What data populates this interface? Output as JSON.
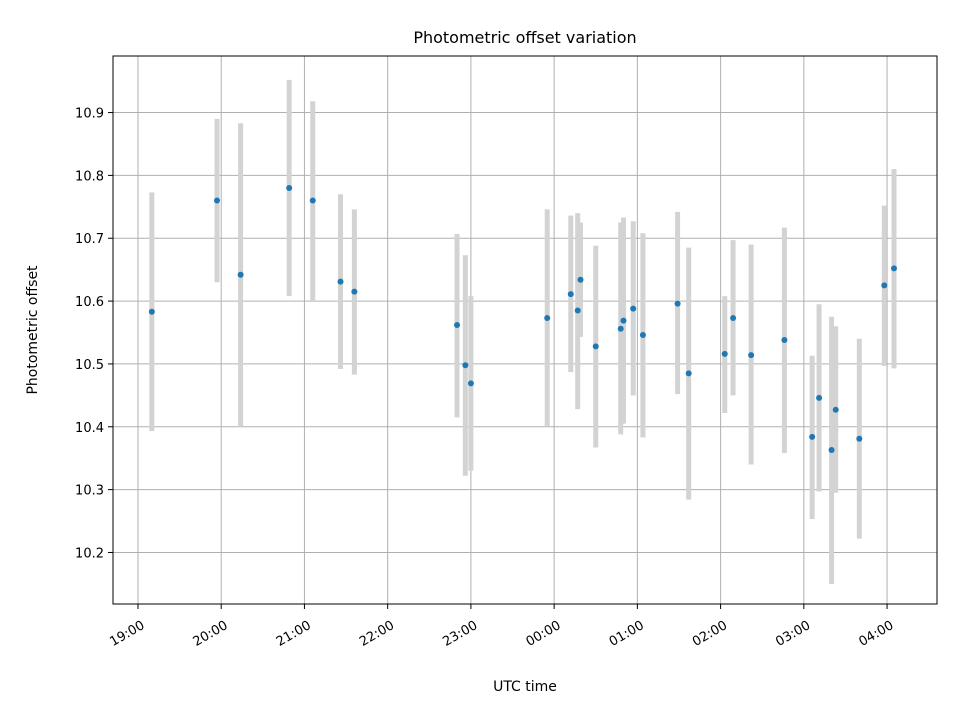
{
  "chart_data": {
    "type": "scatter",
    "title": "Photometric offset variation",
    "xlabel": "UTC time",
    "ylabel": "Photometric offset",
    "grid": true,
    "x_axis": {
      "start_hour": 18.7,
      "end_hour": 28.6
    },
    "y_axis": {
      "min": 10.118,
      "max": 10.99
    },
    "x_ticks": [
      {
        "hour": 19,
        "label": "19:00"
      },
      {
        "hour": 20,
        "label": "20:00"
      },
      {
        "hour": 21,
        "label": "21:00"
      },
      {
        "hour": 22,
        "label": "22:00"
      },
      {
        "hour": 23,
        "label": "23:00"
      },
      {
        "hour": 24,
        "label": "00:00"
      },
      {
        "hour": 25,
        "label": "01:00"
      },
      {
        "hour": 26,
        "label": "02:00"
      },
      {
        "hour": 27,
        "label": "03:00"
      },
      {
        "hour": 28,
        "label": "04:00"
      }
    ],
    "y_ticks": [
      {
        "value": 10.2,
        "label": "10.2"
      },
      {
        "value": 10.3,
        "label": "10.3"
      },
      {
        "value": 10.4,
        "label": "10.4"
      },
      {
        "value": 10.5,
        "label": "10.5"
      },
      {
        "value": 10.6,
        "label": "10.6"
      },
      {
        "value": 10.7,
        "label": "10.7"
      },
      {
        "value": 10.8,
        "label": "10.8"
      },
      {
        "value": 10.9,
        "label": "10.9"
      }
    ],
    "points": [
      {
        "time": "19:10",
        "y": 10.583,
        "ylow": 10.393,
        "yhigh": 10.773
      },
      {
        "time": "19:57",
        "y": 10.76,
        "ylow": 10.63,
        "yhigh": 10.89
      },
      {
        "time": "20:14",
        "y": 10.642,
        "ylow": 10.4,
        "yhigh": 10.883
      },
      {
        "time": "20:49",
        "y": 10.78,
        "ylow": 10.608,
        "yhigh": 10.952
      },
      {
        "time": "21:06",
        "y": 10.76,
        "ylow": 10.6,
        "yhigh": 10.918
      },
      {
        "time": "21:26",
        "y": 10.631,
        "ylow": 10.492,
        "yhigh": 10.77
      },
      {
        "time": "21:36",
        "y": 10.615,
        "ylow": 10.483,
        "yhigh": 10.746
      },
      {
        "time": "22:50",
        "y": 10.562,
        "ylow": 10.415,
        "yhigh": 10.707
      },
      {
        "time": "22:56",
        "y": 10.498,
        "ylow": 10.322,
        "yhigh": 10.673
      },
      {
        "time": "23:00",
        "y": 10.469,
        "ylow": 10.33,
        "yhigh": 10.608
      },
      {
        "time": "23:55",
        "y": 10.573,
        "ylow": 10.4,
        "yhigh": 10.746
      },
      {
        "time": "00:12",
        "y": 10.611,
        "ylow": 10.487,
        "yhigh": 10.736
      },
      {
        "time": "00:17",
        "y": 10.585,
        "ylow": 10.428,
        "yhigh": 10.74
      },
      {
        "time": "00:19",
        "y": 10.634,
        "ylow": 10.543,
        "yhigh": 10.725
      },
      {
        "time": "00:30",
        "y": 10.528,
        "ylow": 10.367,
        "yhigh": 10.688
      },
      {
        "time": "00:48",
        "y": 10.556,
        "ylow": 10.388,
        "yhigh": 10.725
      },
      {
        "time": "00:50",
        "y": 10.569,
        "ylow": 10.405,
        "yhigh": 10.733
      },
      {
        "time": "00:57",
        "y": 10.588,
        "ylow": 10.45,
        "yhigh": 10.727
      },
      {
        "time": "01:04",
        "y": 10.546,
        "ylow": 10.383,
        "yhigh": 10.708
      },
      {
        "time": "01:29",
        "y": 10.596,
        "ylow": 10.452,
        "yhigh": 10.742
      },
      {
        "time": "01:37",
        "y": 10.485,
        "ylow": 10.284,
        "yhigh": 10.685
      },
      {
        "time": "02:03",
        "y": 10.516,
        "ylow": 10.422,
        "yhigh": 10.608
      },
      {
        "time": "02:09",
        "y": 10.573,
        "ylow": 10.45,
        "yhigh": 10.697
      },
      {
        "time": "02:22",
        "y": 10.514,
        "ylow": 10.34,
        "yhigh": 10.69
      },
      {
        "time": "02:46",
        "y": 10.538,
        "ylow": 10.358,
        "yhigh": 10.717
      },
      {
        "time": "03:06",
        "y": 10.384,
        "ylow": 10.253,
        "yhigh": 10.513
      },
      {
        "time": "03:11",
        "y": 10.446,
        "ylow": 10.297,
        "yhigh": 10.595
      },
      {
        "time": "03:20",
        "y": 10.363,
        "ylow": 10.15,
        "yhigh": 10.575
      },
      {
        "time": "03:23",
        "y": 10.427,
        "ylow": 10.295,
        "yhigh": 10.56
      },
      {
        "time": "03:40",
        "y": 10.381,
        "ylow": 10.222,
        "yhigh": 10.54
      },
      {
        "time": "03:58",
        "y": 10.625,
        "ylow": 10.497,
        "yhigh": 10.752
      },
      {
        "time": "04:05",
        "y": 10.652,
        "ylow": 10.493,
        "yhigh": 10.81
      }
    ],
    "colors": {
      "point": "#1f77b4",
      "errorbar": "#d3d3d3",
      "grid": "#b0b0b0"
    }
  }
}
